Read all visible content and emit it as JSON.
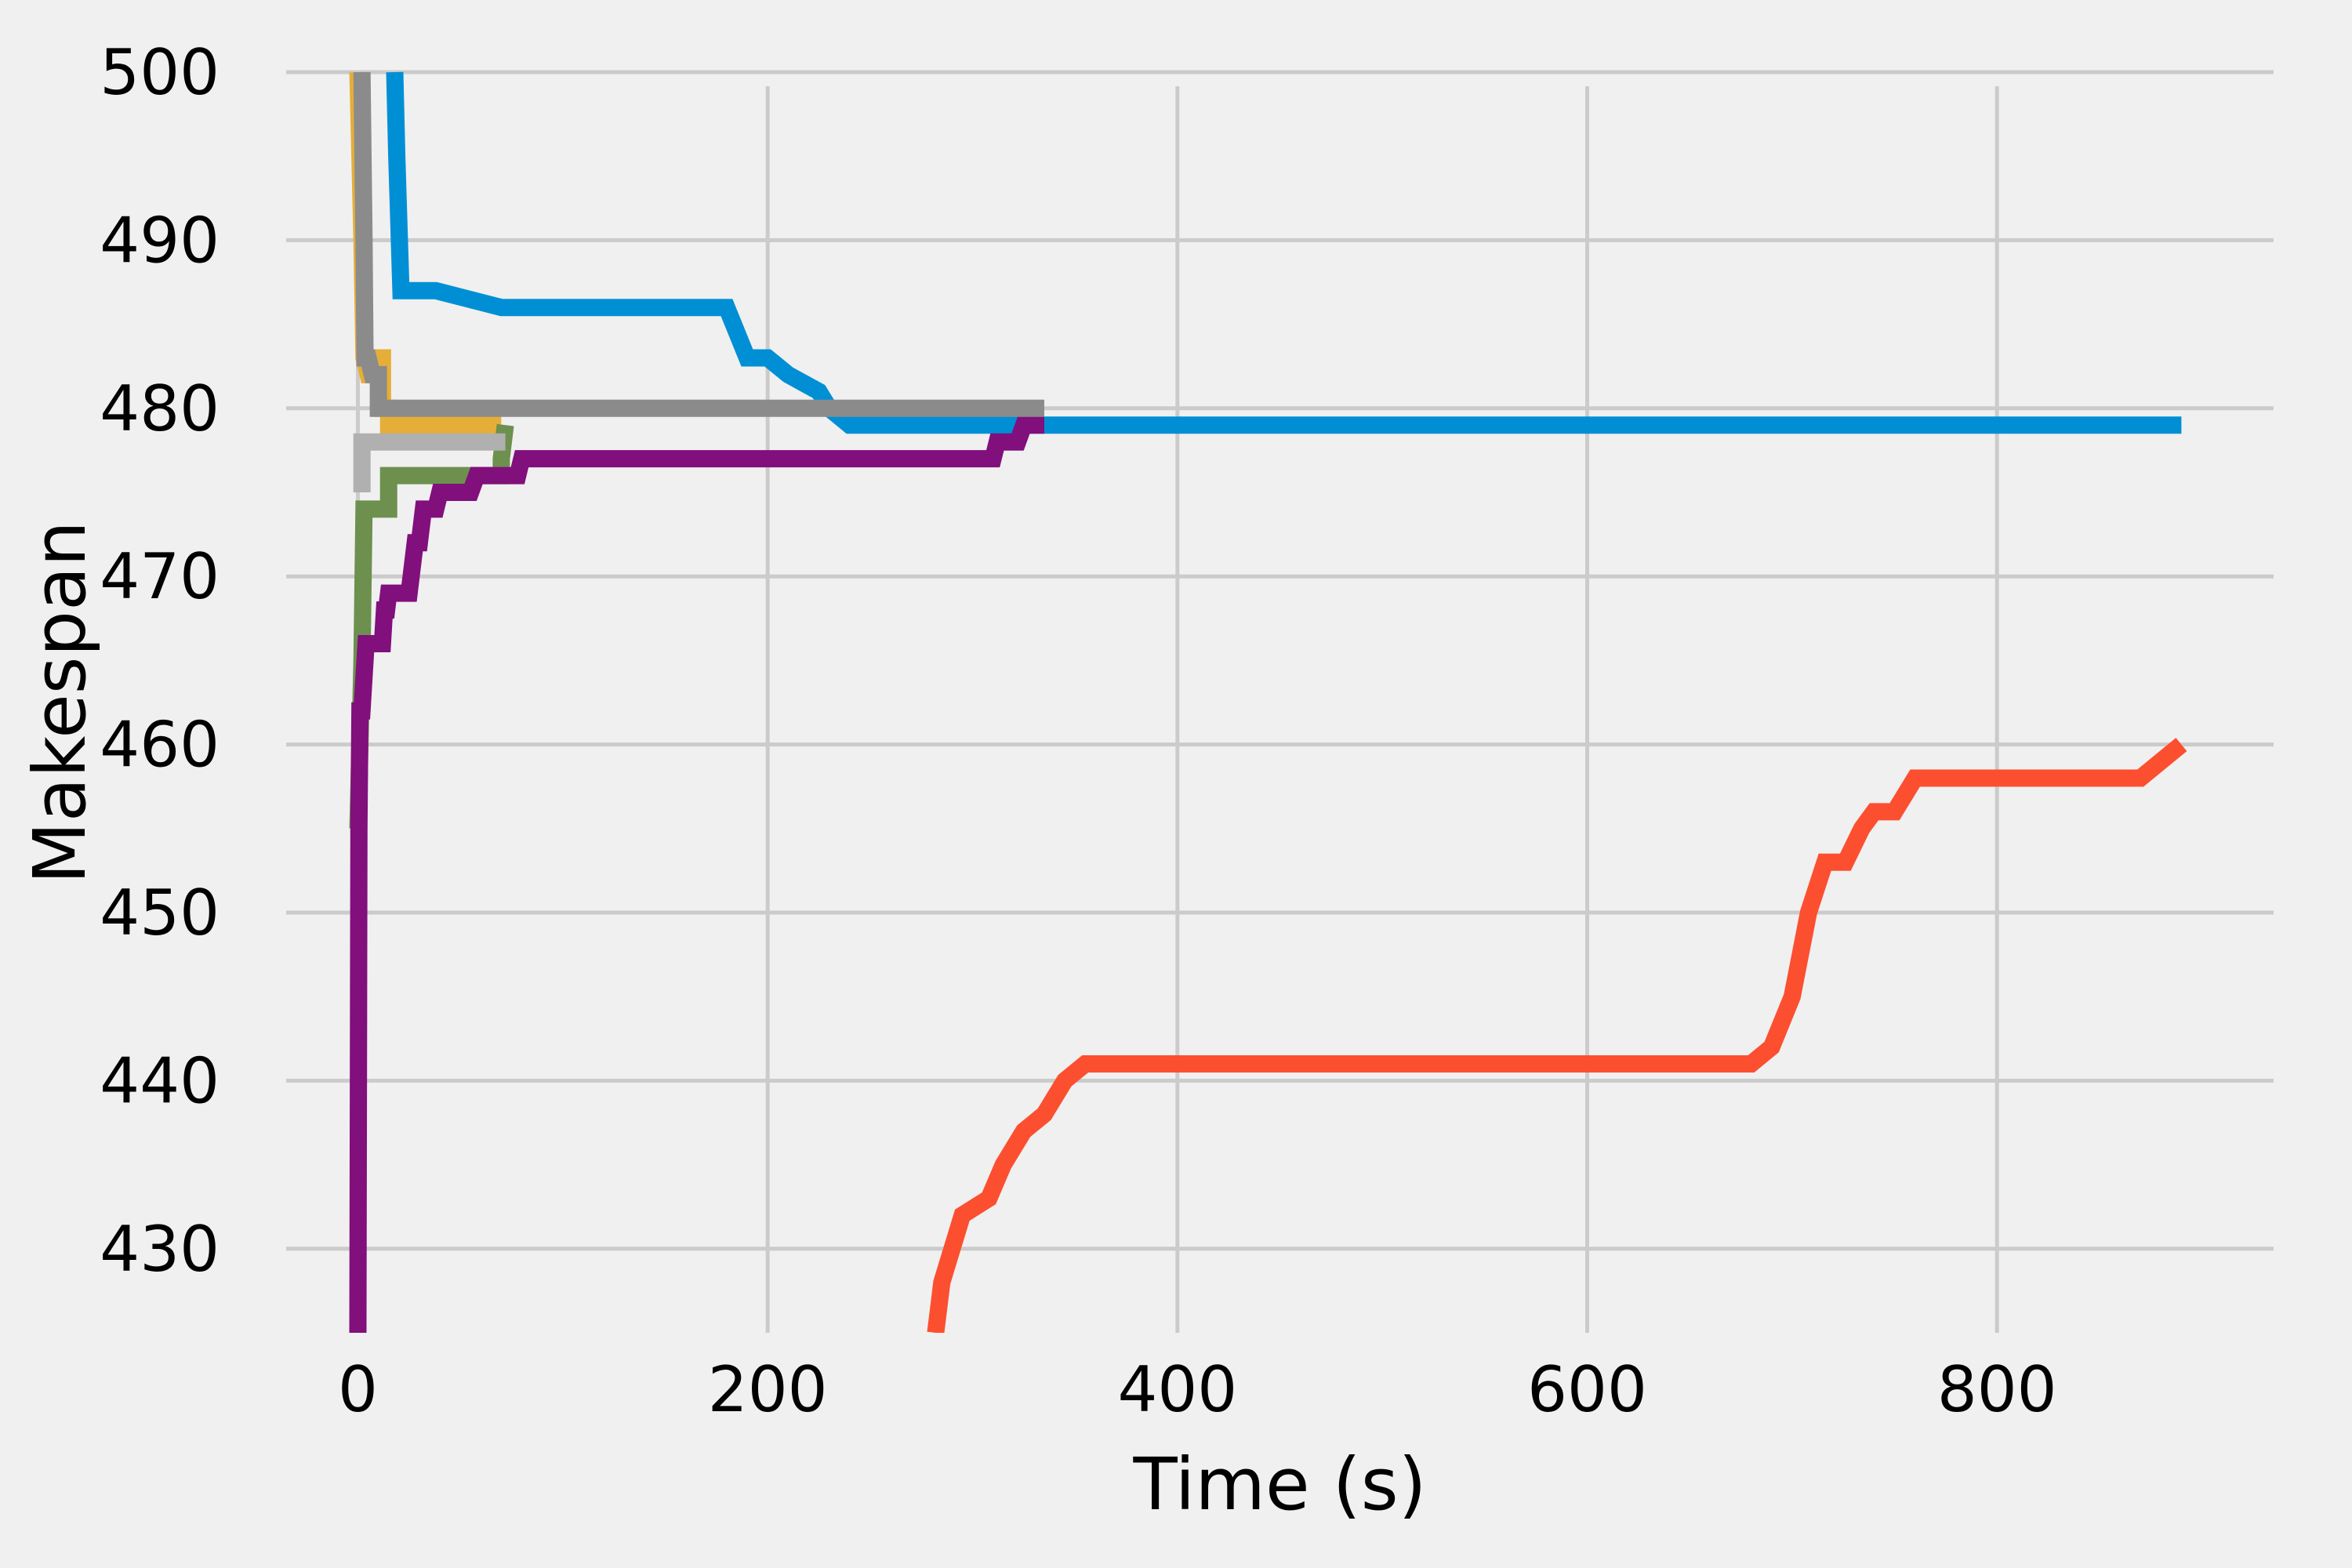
{
  "chart_data": {
    "type": "line",
    "title": "",
    "xlabel": "Time (s)",
    "ylabel": "Makespan",
    "xlim": [
      -35,
      935
    ],
    "ylim": [
      425,
      500
    ],
    "xticks": [
      0,
      200,
      400,
      600,
      800
    ],
    "yticks": [
      430,
      440,
      450,
      460,
      470,
      480,
      490,
      500
    ],
    "grid": true,
    "legend": "none",
    "series": [
      {
        "color": "#e5ae38",
        "x": [
          0,
          2,
          3,
          5,
          6,
          10,
          10,
          12,
          12,
          15,
          15,
          70
        ],
        "y": [
          500,
          490,
          483,
          482,
          482,
          482,
          483,
          483,
          480,
          480,
          479,
          479
        ]
      },
      {
        "color": "#6d904f",
        "x": [
          0,
          2,
          3,
          3,
          15,
          15,
          70,
          70,
          72
        ],
        "y": [
          455,
          465,
          474,
          474,
          474,
          476,
          476,
          477,
          479
        ]
      },
      {
        "color": "#b0b0b0",
        "x": [
          2,
          2,
          72
        ],
        "y": [
          475,
          478,
          478
        ]
      },
      {
        "color": "#008fd5",
        "x": [
          18,
          19,
          21,
          25,
          38,
          70,
          180,
          190,
          200,
          210,
          225,
          230,
          240,
          245,
          890
        ],
        "y": [
          500,
          495,
          487,
          487,
          487,
          486,
          486,
          483,
          483,
          482,
          481,
          480,
          479,
          479,
          479
        ]
      },
      {
        "color": "#fc4f30",
        "x": [
          282,
          285,
          295,
          308,
          315,
          325,
          335,
          345,
          355,
          360,
          400,
          500,
          600,
          680,
          690,
          700,
          708,
          716,
          726,
          734,
          740,
          750,
          760,
          768,
          780,
          860,
          870,
          880,
          890
        ],
        "y": [
          425,
          428,
          432,
          433,
          435,
          437,
          438,
          440,
          441,
          441,
          441,
          441,
          441,
          441,
          442,
          445,
          450,
          453,
          453,
          455,
          456,
          456,
          458,
          458,
          458,
          458,
          458,
          459,
          460
        ]
      },
      {
        "color": "#810f7c",
        "x": [
          0,
          0.5,
          1,
          2,
          3,
          4,
          4,
          12,
          13,
          14,
          15,
          18,
          20,
          25,
          28,
          30,
          32,
          35,
          38,
          40,
          42,
          45,
          55,
          58,
          60,
          78,
          80,
          310,
          312,
          315,
          322,
          325,
          328,
          335
        ],
        "y": [
          425,
          455,
          462,
          462,
          464,
          466,
          466,
          466,
          468,
          468,
          469,
          469,
          469,
          469,
          472,
          472,
          474,
          474,
          474,
          475,
          475,
          475,
          475,
          476,
          476,
          476,
          477,
          477,
          478,
          478,
          478,
          479,
          479,
          479
        ]
      },
      {
        "color": "#8b8b8b",
        "x": [
          2,
          3,
          3.5,
          5,
          7,
          8,
          10,
          10,
          25,
          100,
          200,
          335
        ],
        "y": [
          500,
          490,
          483,
          483,
          482,
          482,
          482,
          480,
          480,
          480,
          480,
          480
        ]
      }
    ]
  }
}
